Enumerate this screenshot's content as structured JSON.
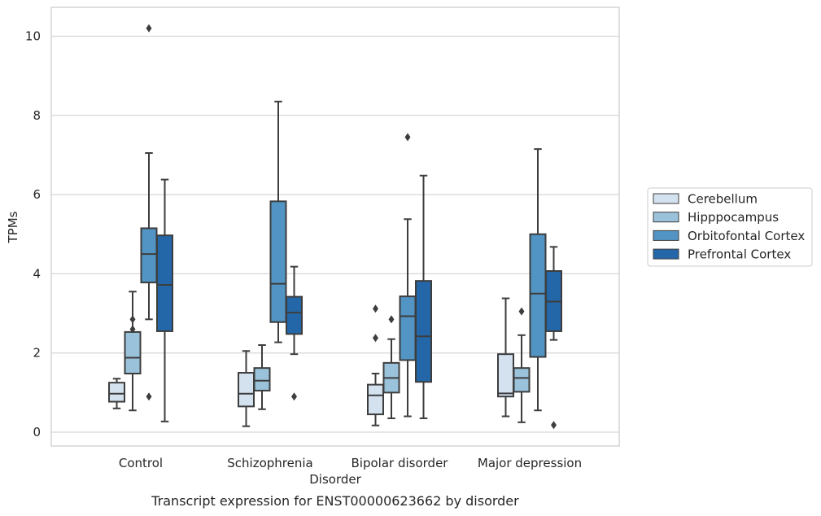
{
  "caption": "Transcript expression for ENST00000623662 by disorder",
  "chart_data": {
    "type": "box",
    "title": "",
    "xlabel": "Disorder",
    "ylabel": "TPMs",
    "categories": [
      "Control",
      "Schizophrenia",
      "Bipolar disorder",
      "Major depression"
    ],
    "ylim": [
      -0.3,
      10.7
    ],
    "yticks": [
      0,
      2,
      4,
      6,
      8,
      10
    ],
    "grid": "horizontal",
    "legend_position": "right",
    "series": [
      {
        "name": "Cerebellum",
        "color": "#d4e2f0",
        "boxes": [
          {
            "whislo": 0.6,
            "q1": 0.77,
            "med": 0.97,
            "q3": 1.25,
            "whishi": 1.35,
            "fliers": []
          },
          {
            "whislo": 0.15,
            "q1": 0.65,
            "med": 0.97,
            "q3": 1.5,
            "whishi": 2.05,
            "fliers": []
          },
          {
            "whislo": 0.17,
            "q1": 0.45,
            "med": 0.93,
            "q3": 1.2,
            "whishi": 1.48,
            "fliers": [
              2.38,
              3.12
            ]
          },
          {
            "whislo": 0.4,
            "q1": 0.9,
            "med": 0.98,
            "q3": 1.97,
            "whishi": 3.38,
            "fliers": []
          }
        ]
      },
      {
        "name": "Hipppocampus",
        "color": "#9bc2db",
        "boxes": [
          {
            "whislo": 0.55,
            "q1": 1.48,
            "med": 1.88,
            "q3": 2.53,
            "whishi": 3.55,
            "fliers": [
              2.6,
              2.85
            ]
          },
          {
            "whislo": 0.58,
            "q1": 1.05,
            "med": 1.3,
            "q3": 1.62,
            "whishi": 2.2,
            "fliers": []
          },
          {
            "whislo": 0.35,
            "q1": 1.0,
            "med": 1.37,
            "q3": 1.75,
            "whishi": 2.35,
            "fliers": [
              2.85
            ]
          },
          {
            "whislo": 0.25,
            "q1": 1.02,
            "med": 1.37,
            "q3": 1.62,
            "whishi": 2.45,
            "fliers": [
              3.05
            ]
          }
        ]
      },
      {
        "name": "Orbitofontal Cortex",
        "color": "#5294c3",
        "boxes": [
          {
            "whislo": 2.85,
            "q1": 3.78,
            "med": 4.5,
            "q3": 5.15,
            "whishi": 7.05,
            "fliers": [
              0.9,
              10.2
            ]
          },
          {
            "whislo": 2.27,
            "q1": 2.78,
            "med": 3.75,
            "q3": 5.83,
            "whishi": 8.35,
            "fliers": []
          },
          {
            "whislo": 0.4,
            "q1": 1.82,
            "med": 2.93,
            "q3": 3.43,
            "whishi": 5.38,
            "fliers": [
              7.45
            ]
          },
          {
            "whislo": 0.55,
            "q1": 1.9,
            "med": 3.5,
            "q3": 5.0,
            "whishi": 7.15,
            "fliers": []
          }
        ]
      },
      {
        "name": "Prefrontal Cortex",
        "color": "#2467a8",
        "boxes": [
          {
            "whislo": 0.27,
            "q1": 2.55,
            "med": 3.72,
            "q3": 4.97,
            "whishi": 6.38,
            "fliers": []
          },
          {
            "whislo": 1.97,
            "q1": 2.48,
            "med": 3.02,
            "q3": 3.42,
            "whishi": 4.18,
            "fliers": [
              0.9
            ]
          },
          {
            "whislo": 0.35,
            "q1": 1.27,
            "med": 2.42,
            "q3": 3.82,
            "whishi": 6.48,
            "fliers": []
          },
          {
            "whislo": 2.33,
            "q1": 2.55,
            "med": 3.3,
            "q3": 4.07,
            "whishi": 4.68,
            "fliers": [
              0.18
            ]
          }
        ]
      }
    ]
  }
}
